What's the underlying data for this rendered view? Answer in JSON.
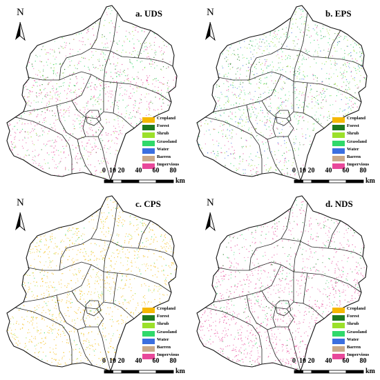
{
  "figure": {
    "panels": [
      {
        "id": "uds",
        "title": "a. UDS",
        "dominant": [
          "impervious",
          "grassland"
        ],
        "dot_weights": {
          "impervious": 0.55,
          "grassland": 0.2,
          "shrub": 0.15,
          "forest": 0.1
        }
      },
      {
        "id": "eps",
        "title": "b. EPS",
        "dominant": [
          "grassland",
          "shrub",
          "water"
        ],
        "dot_weights": {
          "grassland": 0.35,
          "shrub": 0.25,
          "forest": 0.15,
          "water": 0.1,
          "impervious": 0.15
        }
      },
      {
        "id": "cps",
        "title": "c. CPS",
        "dominant": [
          "cropland"
        ],
        "dot_weights": {
          "cropland": 0.8,
          "shrub": 0.1,
          "grassland": 0.1
        }
      },
      {
        "id": "nds",
        "title": "d. NDS",
        "dominant": [
          "impervious"
        ],
        "dot_weights": {
          "impervious": 0.8,
          "grassland": 0.1,
          "forest": 0.1
        }
      }
    ],
    "north_arrow": {
      "letter": "N"
    },
    "legend": [
      {
        "key": "cropland",
        "label": "Cropland",
        "color": "#f5b800"
      },
      {
        "key": "forest",
        "label": "Forest",
        "color": "#1f7a1f"
      },
      {
        "key": "shrub",
        "label": "Shrub",
        "color": "#9be02a"
      },
      {
        "key": "grassland",
        "label": "Grassland",
        "color": "#2fd96b"
      },
      {
        "key": "water",
        "label": "Water",
        "color": "#3b6fe0"
      },
      {
        "key": "barren",
        "label": "Barren",
        "color": "#c9a98a"
      },
      {
        "key": "impervious",
        "label": "Impervious",
        "color": "#e8489a"
      }
    ],
    "scale_bar": {
      "ticks": [
        "0",
        "10",
        "20",
        "40",
        "60",
        "80"
      ],
      "tick_km": [
        0,
        10,
        20,
        40,
        60,
        80
      ],
      "unit": "km"
    }
  }
}
